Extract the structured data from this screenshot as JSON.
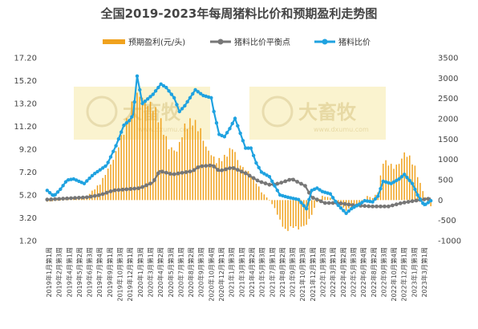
{
  "chart_data": {
    "type": "bar+line",
    "title": "全国2019-2023年每周猪料比价和预期盈利走势图",
    "watermark": {
      "brand": "大畜牧",
      "url": "www.dxumu.com"
    },
    "left_axis": {
      "ylim": [
        1.2,
        17.2
      ],
      "ticks": [
        "1.20",
        "3.20",
        "5.20",
        "7.20",
        "9.20",
        "11.20",
        "13.20",
        "15.20",
        "17.20"
      ]
    },
    "right_axis": {
      "ylim": [
        -1000,
        3500
      ],
      "ticks": [
        "-1000",
        "-500",
        "0",
        "500",
        "1000",
        "1500",
        "2000",
        "2500",
        "3000",
        "3500"
      ]
    },
    "grid": false,
    "legend_position": "top",
    "x_labels": [
      "2019年1月第1周",
      "2019年2月第3周",
      "2019年4月第1周",
      "2019年5月第2周",
      "2019年6月第3周",
      "2019年7月第4周",
      "2019年9月第1周",
      "2019年10月第3周",
      "2019年12月第1周",
      "2020年1月第3周",
      "2020年3月第1周",
      "2020年4月第2周",
      "2020年5月第3周",
      "2020年7月第1周",
      "2020年8月第2周",
      "2020年9月第3周",
      "2020年10月第4周",
      "2020年12月第1周",
      "2021年1月第3周",
      "2021年3月第1周",
      "2021年4月第2周",
      "2021年5月第3周",
      "2021年7月第1周",
      "2021年8月第2周",
      "2021年9月第3周",
      "2021年10月第3周",
      "2021年12月第1周",
      "2022年1月第3周",
      "2022年3月第1周",
      "2022年4月第2周",
      "2022年5月第3周",
      "2022年6月第4周",
      "2022年8月第2周",
      "2022年9月第3周",
      "2022年10月第4周",
      "2022年12月第1周",
      "2023年1月第3周",
      "2023年3月第1周"
    ],
    "series": [
      {
        "name": "预期盈利(元/头)",
        "type": "bar",
        "axis": "right",
        "color": "#f0a21e",
        "keyframes": [
          [
            0,
            -40
          ],
          [
            10,
            -10
          ],
          [
            22,
            60
          ],
          [
            30,
            100
          ],
          [
            40,
            400
          ],
          [
            50,
            1000
          ],
          [
            58,
            1700
          ],
          [
            66,
            2500
          ],
          [
            70,
            2600
          ],
          [
            74,
            2400
          ],
          [
            80,
            2300
          ],
          [
            86,
            1900
          ],
          [
            92,
            1300
          ],
          [
            98,
            1200
          ],
          [
            104,
            1800
          ],
          [
            110,
            1950
          ],
          [
            116,
            1700
          ],
          [
            120,
            1300
          ],
          [
            128,
            950
          ],
          [
            134,
            1050
          ],
          [
            140,
            1300
          ],
          [
            146,
            850
          ],
          [
            150,
            750
          ],
          [
            156,
            550
          ],
          [
            162,
            200
          ],
          [
            168,
            0
          ],
          [
            172,
            -200
          ],
          [
            176,
            -500
          ],
          [
            180,
            -750
          ],
          [
            186,
            -650
          ],
          [
            190,
            -700
          ],
          [
            196,
            -600
          ],
          [
            200,
            -350
          ],
          [
            204,
            -50
          ],
          [
            208,
            100
          ],
          [
            214,
            60
          ],
          [
            220,
            -80
          ],
          [
            226,
            -250
          ],
          [
            232,
            -150
          ],
          [
            238,
            -50
          ],
          [
            242,
            100
          ],
          [
            246,
            50
          ],
          [
            250,
            200
          ],
          [
            254,
            950
          ],
          [
            258,
            900
          ],
          [
            262,
            800
          ],
          [
            266,
            900
          ],
          [
            270,
            1150
          ],
          [
            274,
            1050
          ],
          [
            278,
            800
          ],
          [
            282,
            400
          ],
          [
            285,
            150
          ],
          [
            288,
            -100
          ],
          [
            290,
            -150
          ]
        ]
      },
      {
        "name": "猪料比价平衡点",
        "type": "line",
        "axis": "left",
        "color": "#777777",
        "keyframes": [
          [
            0,
            4.8
          ],
          [
            15,
            4.9
          ],
          [
            30,
            5.0
          ],
          [
            40,
            5.2
          ],
          [
            50,
            5.6
          ],
          [
            60,
            5.7
          ],
          [
            70,
            5.8
          ],
          [
            80,
            6.3
          ],
          [
            85,
            7.3
          ],
          [
            95,
            7.0
          ],
          [
            110,
            7.3
          ],
          [
            115,
            7.7
          ],
          [
            125,
            7.8
          ],
          [
            130,
            7.3
          ],
          [
            140,
            7.6
          ],
          [
            150,
            7.1
          ],
          [
            160,
            6.4
          ],
          [
            168,
            6.1
          ],
          [
            175,
            6.2
          ],
          [
            185,
            6.6
          ],
          [
            195,
            6.0
          ],
          [
            200,
            5.0
          ],
          [
            210,
            4.5
          ],
          [
            220,
            4.5
          ],
          [
            232,
            4.3
          ],
          [
            245,
            4.2
          ],
          [
            258,
            4.2
          ],
          [
            268,
            4.5
          ],
          [
            278,
            4.7
          ],
          [
            290,
            4.9
          ]
        ]
      },
      {
        "name": "猪料比价",
        "type": "line",
        "axis": "left",
        "color": "#1fa2e0",
        "keyframes": [
          [
            0,
            5.6
          ],
          [
            5,
            5.1
          ],
          [
            10,
            5.7
          ],
          [
            15,
            6.5
          ],
          [
            20,
            6.6
          ],
          [
            28,
            6.2
          ],
          [
            35,
            7.0
          ],
          [
            45,
            7.8
          ],
          [
            52,
            9.5
          ],
          [
            58,
            11.3
          ],
          [
            62,
            11.7
          ],
          [
            65,
            12.2
          ],
          [
            68,
            15.6
          ],
          [
            72,
            13.2
          ],
          [
            80,
            14.0
          ],
          [
            86,
            14.9
          ],
          [
            90,
            14.6
          ],
          [
            96,
            13.7
          ],
          [
            100,
            12.5
          ],
          [
            104,
            13.0
          ],
          [
            108,
            13.7
          ],
          [
            112,
            14.4
          ],
          [
            118,
            13.9
          ],
          [
            124,
            13.7
          ],
          [
            126,
            12.5
          ],
          [
            130,
            10.5
          ],
          [
            134,
            10.3
          ],
          [
            138,
            11.0
          ],
          [
            142,
            11.9
          ],
          [
            146,
            10.6
          ],
          [
            150,
            9.3
          ],
          [
            154,
            9.3
          ],
          [
            158,
            8.0
          ],
          [
            162,
            7.2
          ],
          [
            168,
            6.8
          ],
          [
            172,
            6.0
          ],
          [
            176,
            5.2
          ],
          [
            182,
            5.0
          ],
          [
            190,
            4.8
          ],
          [
            196,
            4.0
          ],
          [
            200,
            5.6
          ],
          [
            204,
            5.8
          ],
          [
            208,
            5.5
          ],
          [
            214,
            5.3
          ],
          [
            220,
            4.3
          ],
          [
            226,
            3.6
          ],
          [
            230,
            4.0
          ],
          [
            236,
            4.4
          ],
          [
            240,
            4.7
          ],
          [
            246,
            4.6
          ],
          [
            250,
            5.1
          ],
          [
            254,
            6.4
          ],
          [
            260,
            6.2
          ],
          [
            266,
            6.6
          ],
          [
            270,
            7.0
          ],
          [
            276,
            6.2
          ],
          [
            280,
            5.2
          ],
          [
            285,
            4.3
          ],
          [
            290,
            4.7
          ]
        ]
      }
    ]
  }
}
